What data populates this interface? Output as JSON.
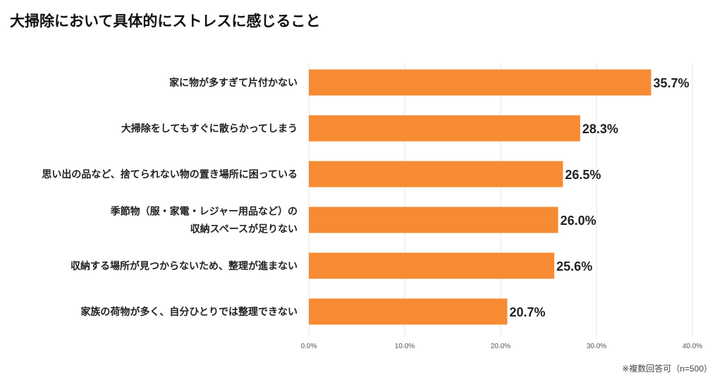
{
  "chart_data": {
    "type": "bar",
    "orientation": "horizontal",
    "title": "大掃除において具体的にストレスに感じること",
    "categories": [
      [
        "家に物が多すぎて片付かない"
      ],
      [
        "大掃除をしてもすぐに散らかってしまう"
      ],
      [
        "思い出の品など、捨てられない物の置き場所に困っている"
      ],
      [
        "季節物（服・家電・レジャー用品など）の",
        "収納スペースが足りない"
      ],
      [
        "収納する場所が見つからないため、整理が進まない"
      ],
      [
        "家族の荷物が多く、自分ひとりでは整理できない"
      ]
    ],
    "values": [
      35.7,
      28.3,
      26.5,
      26.0,
      25.6,
      20.7
    ],
    "value_labels": [
      "35.7%",
      "28.3%",
      "26.5%",
      "26.0%",
      "25.6%",
      "20.7%"
    ],
    "xlim": [
      0,
      40
    ],
    "xticks": [
      0,
      10,
      20,
      30,
      40
    ],
    "xtick_labels": [
      "0.0%",
      "10.0%",
      "20.0%",
      "30.0%",
      "40.0%"
    ],
    "grid": true,
    "bar_color": "#F68B33",
    "xlabel": "",
    "ylabel": "",
    "note": "※複数回答可（n=500）"
  }
}
